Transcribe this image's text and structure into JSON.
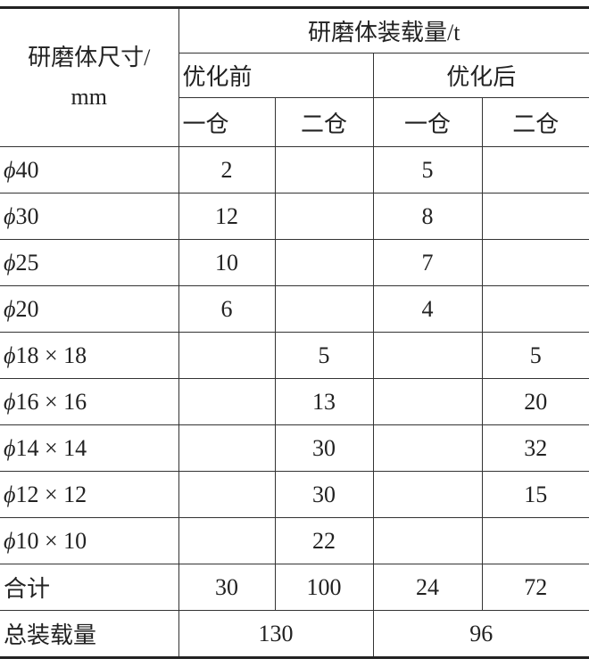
{
  "table": {
    "header": {
      "size_label_line1": "研磨体尺寸/",
      "size_label_line2": "mm",
      "load_label": "研磨体装载量/t",
      "groups": [
        "优化前",
        "优化后"
      ],
      "chambers": [
        "一仓",
        "二仓",
        "一仓",
        "二仓"
      ]
    },
    "phi_symbol": "ϕ",
    "rows": [
      {
        "size": "40",
        "cells": [
          "2",
          "",
          "5",
          ""
        ]
      },
      {
        "size": "30",
        "cells": [
          "12",
          "",
          "8",
          ""
        ]
      },
      {
        "size": "25",
        "cells": [
          "10",
          "",
          "7",
          ""
        ]
      },
      {
        "size": "20",
        "cells": [
          "6",
          "",
          "4",
          ""
        ]
      },
      {
        "size": "18 × 18",
        "cells": [
          "",
          "5",
          "",
          "5"
        ]
      },
      {
        "size": "16 × 16",
        "cells": [
          "",
          "13",
          "",
          "20"
        ]
      },
      {
        "size": "14 × 14",
        "cells": [
          "",
          "30",
          "",
          "32"
        ]
      },
      {
        "size": "12 × 12",
        "cells": [
          "",
          "30",
          "",
          "15"
        ]
      },
      {
        "size": "10 × 10",
        "cells": [
          "",
          "22",
          "",
          ""
        ]
      }
    ],
    "subtotal": {
      "label": "合计",
      "cells": [
        "30",
        "100",
        "24",
        "72"
      ]
    },
    "total": {
      "label": "总装载量",
      "before": "130",
      "after": "96"
    }
  }
}
